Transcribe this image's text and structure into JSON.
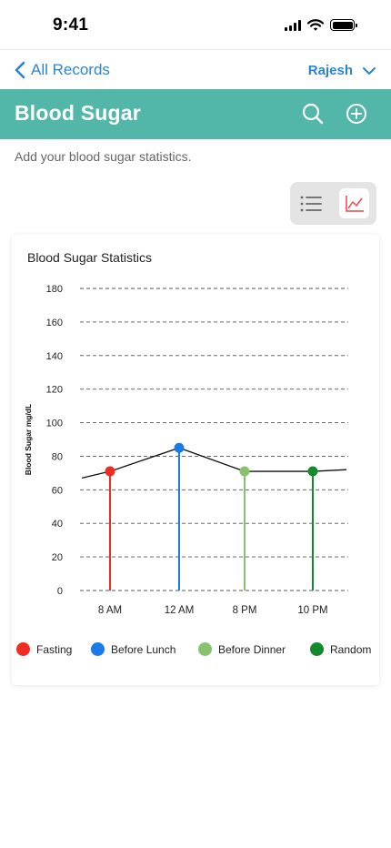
{
  "status": {
    "time": "9:41"
  },
  "nav": {
    "back_label": "All Records",
    "user_label": "Rajesh"
  },
  "header": {
    "title": "Blood Sugar"
  },
  "subtitle": "Add your blood sugar statistics.",
  "icons": {
    "back": "chevron-left-icon",
    "user_dropdown": "chevron-down-icon",
    "search": "search-icon",
    "add": "plus-circle-icon",
    "list_view": "list-icon",
    "chart_view": "line-chart-icon"
  },
  "colors": {
    "accent": "#52b7a8",
    "link": "#2a84d6",
    "chart_view_icon": "#e8474f"
  },
  "chart_data": {
    "type": "line",
    "title": "Blood Sugar Statistics",
    "xlabel": "",
    "ylabel": "Blood Sugar mg/dL",
    "ylim": [
      0,
      180
    ],
    "yticks": [
      0,
      20,
      40,
      60,
      80,
      100,
      120,
      140,
      160,
      180
    ],
    "categories": [
      "8 AM",
      "12 AM",
      "8 PM",
      "10 PM"
    ],
    "grid": true,
    "legend_position": "bottom",
    "line": {
      "start_value": 67,
      "values": [
        71,
        85,
        71,
        71
      ],
      "end_value": 72
    },
    "series": [
      {
        "name": "Fasting",
        "category": "8 AM",
        "value": 71,
        "color": "#f02b24"
      },
      {
        "name": "Before Lunch",
        "category": "12 AM",
        "value": 85,
        "color": "#1a7ae8"
      },
      {
        "name": "Before Dinner",
        "category": "8 PM",
        "value": 71,
        "color": "#89c26e"
      },
      {
        "name": "Random",
        "category": "10 PM",
        "value": 71,
        "color": "#148a2e"
      }
    ]
  }
}
